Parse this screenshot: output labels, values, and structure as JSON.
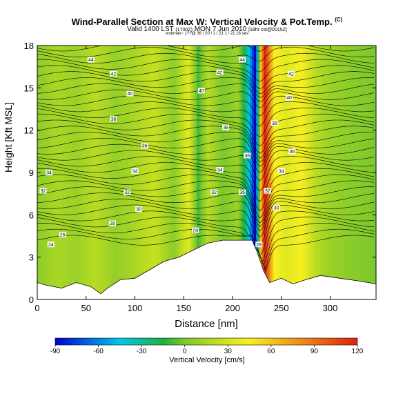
{
  "chart_data": {
    "type": "heatmap",
    "title": "Wind-Parallel Section at Max W: Vertical Velocity & Pot.Temp.",
    "title_suffix": "(C)",
    "subtitle": "Valid 1400 LST",
    "subtitle_small": "(1700Z)",
    "subtitle_main": "MON 7 Jun 2010",
    "subtitle_right": "[18hr cst@0015Z]",
    "model_line": "wstrmax~ 1??@ 36 / 20 / 1 / 21 1 / 21 18 ses",
    "xlabel": "Distance [nm]",
    "ylabel": "Height [Kft MSL]",
    "xlim": [
      0,
      347
    ],
    "ylim": [
      0,
      18
    ],
    "x_ticks": [
      0,
      50,
      100,
      150,
      200,
      250,
      300
    ],
    "y_ticks": [
      0,
      3,
      6,
      9,
      12,
      15,
      18
    ],
    "colorbar": {
      "title": "Vertical Velocity [cm/s]",
      "ticks": [
        -90,
        -60,
        -30,
        0,
        30,
        60,
        90,
        120
      ],
      "range": [
        -90,
        120
      ]
    },
    "colors": {
      "strong_down": "#0000d0",
      "down": "#00c8e8",
      "weak_down": "#20b040",
      "neutral": "#7cc82c",
      "weak_up": "#c8e020",
      "up": "#f8f020",
      "strong_up": "#e02010"
    },
    "theta_labels": [
      {
        "x": 55,
        "y": 17.0,
        "text": "44"
      },
      {
        "x": 78,
        "y": 16.0,
        "text": "42"
      },
      {
        "x": 95,
        "y": 14.6,
        "text": "40"
      },
      {
        "x": 78,
        "y": 12.8,
        "text": "38"
      },
      {
        "x": 110,
        "y": 10.9,
        "text": "36"
      },
      {
        "x": 100,
        "y": 9.1,
        "text": "34"
      },
      {
        "x": 12,
        "y": 9.0,
        "text": "34"
      },
      {
        "x": 6,
        "y": 7.7,
        "text": "32"
      },
      {
        "x": 92,
        "y": 7.6,
        "text": "32"
      },
      {
        "x": 104,
        "y": 6.4,
        "text": "30"
      },
      {
        "x": 77,
        "y": 5.4,
        "text": "28"
      },
      {
        "x": 26,
        "y": 4.6,
        "text": "26"
      },
      {
        "x": 14,
        "y": 3.9,
        "text": "24"
      },
      {
        "x": 187,
        "y": 16.1,
        "text": "42"
      },
      {
        "x": 168,
        "y": 14.8,
        "text": "40"
      },
      {
        "x": 193,
        "y": 12.2,
        "text": "38"
      },
      {
        "x": 187,
        "y": 9.2,
        "text": "34"
      },
      {
        "x": 181,
        "y": 7.6,
        "text": "32"
      },
      {
        "x": 162,
        "y": 4.9,
        "text": "28"
      },
      {
        "x": 210,
        "y": 17.0,
        "text": "44"
      },
      {
        "x": 215,
        "y": 10.2,
        "text": "36"
      },
      {
        "x": 210,
        "y": 7.6,
        "text": "36"
      },
      {
        "x": 236,
        "y": 7.7,
        "text": "32"
      },
      {
        "x": 245,
        "y": 6.5,
        "text": "30"
      },
      {
        "x": 227,
        "y": 3.9,
        "text": "28"
      },
      {
        "x": 260,
        "y": 16.0,
        "text": "42"
      },
      {
        "x": 258,
        "y": 14.3,
        "text": "40"
      },
      {
        "x": 243,
        "y": 12.5,
        "text": "38"
      },
      {
        "x": 261,
        "y": 10.5,
        "text": "36"
      },
      {
        "x": 250,
        "y": 9.1,
        "text": "34"
      }
    ],
    "w_profile": [
      {
        "x": 0,
        "w": 5
      },
      {
        "x": 20,
        "w": 15
      },
      {
        "x": 40,
        "w": 10
      },
      {
        "x": 60,
        "w": 20
      },
      {
        "x": 80,
        "w": 8
      },
      {
        "x": 100,
        "w": 15
      },
      {
        "x": 120,
        "w": 25
      },
      {
        "x": 140,
        "w": 5
      },
      {
        "x": 155,
        "w": 35
      },
      {
        "x": 165,
        "w": -10
      },
      {
        "x": 175,
        "w": 20
      },
      {
        "x": 190,
        "w": 0
      },
      {
        "x": 205,
        "w": 10
      },
      {
        "x": 213,
        "w": -20
      },
      {
        "x": 219,
        "w": -60
      },
      {
        "x": 223,
        "w": -90
      },
      {
        "x": 226,
        "w": -40
      },
      {
        "x": 229,
        "w": 60
      },
      {
        "x": 233,
        "w": 120
      },
      {
        "x": 238,
        "w": 80
      },
      {
        "x": 243,
        "w": 45
      },
      {
        "x": 255,
        "w": 35
      },
      {
        "x": 270,
        "w": 45
      },
      {
        "x": 285,
        "w": 20
      },
      {
        "x": 300,
        "w": 10
      },
      {
        "x": 320,
        "w": 5
      },
      {
        "x": 347,
        "w": 0
      }
    ],
    "terrain": [
      {
        "x": 0,
        "z": 1.2
      },
      {
        "x": 10,
        "z": 1.0
      },
      {
        "x": 25,
        "z": 0.8
      },
      {
        "x": 40,
        "z": 1.2
      },
      {
        "x": 55,
        "z": 0.9
      },
      {
        "x": 65,
        "z": 0.4
      },
      {
        "x": 72,
        "z": 0.8
      },
      {
        "x": 85,
        "z": 1.4
      },
      {
        "x": 100,
        "z": 1.5
      },
      {
        "x": 115,
        "z": 2.1
      },
      {
        "x": 130,
        "z": 2.7
      },
      {
        "x": 145,
        "z": 3.0
      },
      {
        "x": 160,
        "z": 3.5
      },
      {
        "x": 175,
        "z": 4.0
      },
      {
        "x": 190,
        "z": 4.2
      },
      {
        "x": 210,
        "z": 4.2
      },
      {
        "x": 220,
        "z": 4.2
      },
      {
        "x": 225,
        "z": 3.4
      },
      {
        "x": 232,
        "z": 2.0
      },
      {
        "x": 238,
        "z": 1.2
      },
      {
        "x": 250,
        "z": 1.5
      },
      {
        "x": 262,
        "z": 1.1
      },
      {
        "x": 275,
        "z": 1.4
      },
      {
        "x": 290,
        "z": 1.7
      },
      {
        "x": 310,
        "z": 1.5
      },
      {
        "x": 330,
        "z": 1.3
      },
      {
        "x": 347,
        "z": 1.1
      }
    ]
  }
}
